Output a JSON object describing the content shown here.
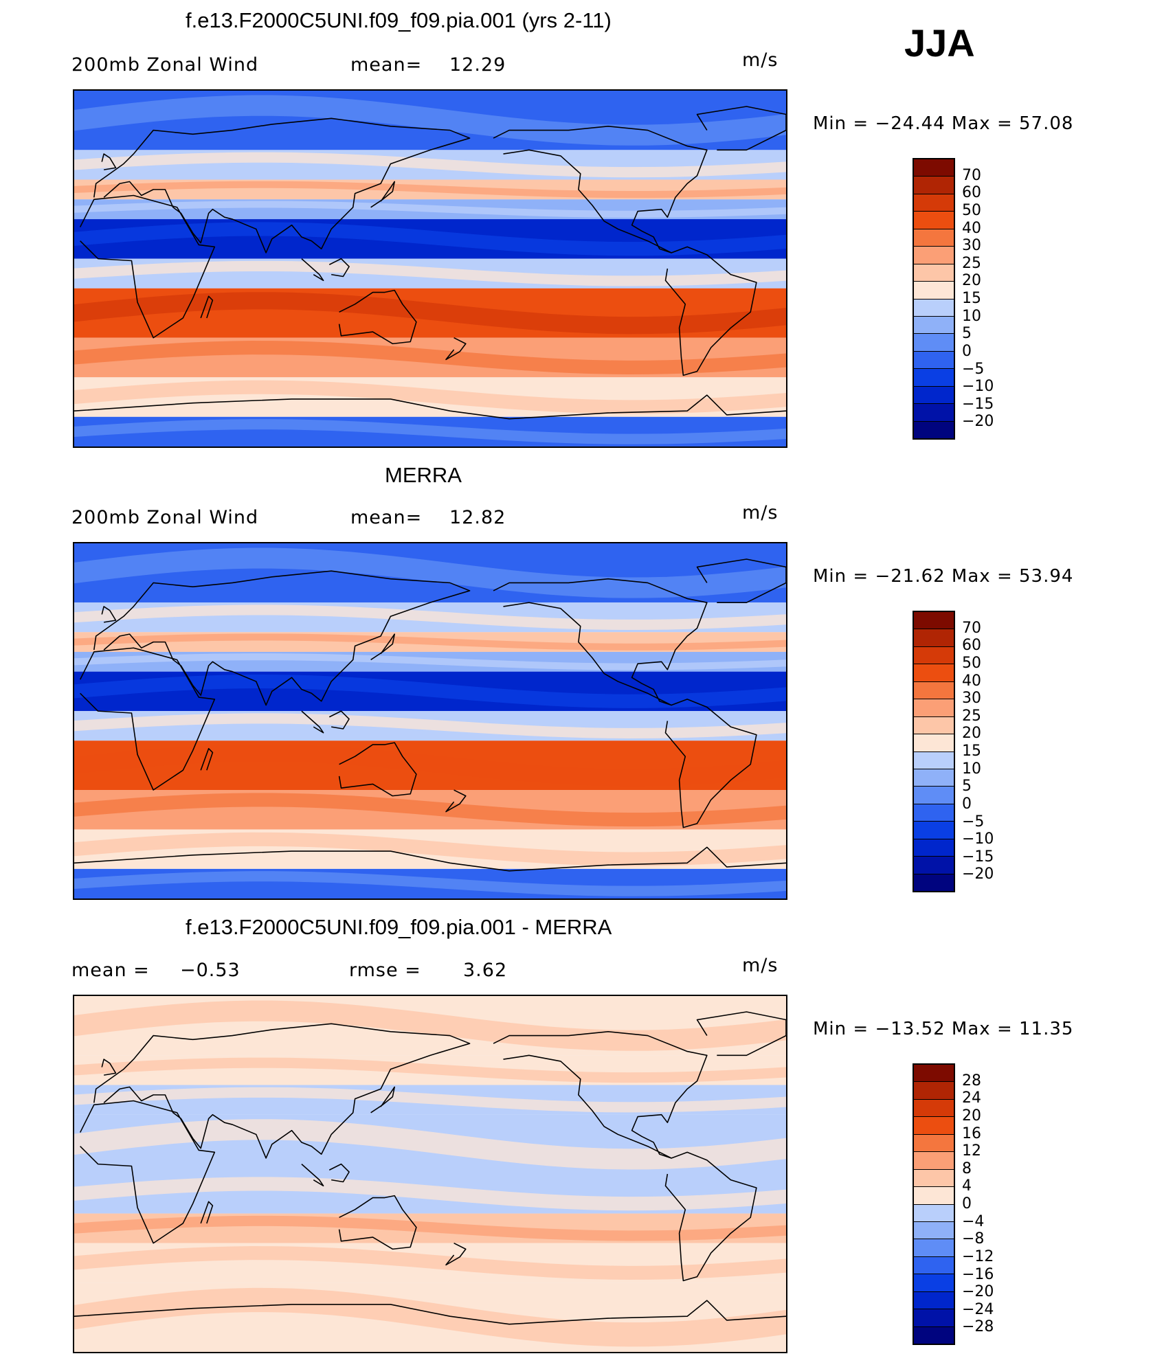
{
  "season": "JJA",
  "colors": {
    "wind": [
      "#00047f",
      "#0012a8",
      "#0026cc",
      "#0a3fe4",
      "#2f63f0",
      "#5f8df6",
      "#8fb1f8",
      "#b9cffb",
      "#dbe8fc",
      "#fde6d6",
      "#fdc6a8",
      "#fb9f76",
      "#f4763e",
      "#ec4e10",
      "#d53a08",
      "#b02504",
      "#7d0b00"
    ],
    "diff": [
      "#00047f",
      "#0012a8",
      "#0026cc",
      "#0a3fe4",
      "#2f63f0",
      "#5f8df6",
      "#8fb1f8",
      "#b9cffb",
      "#dbe8fc",
      "#fde6d6",
      "#fdc6a8",
      "#fb9f76",
      "#f4763e",
      "#ec4e10",
      "#d53a08",
      "#b02504",
      "#7d0b00"
    ]
  },
  "panels": [
    {
      "title": "f.e13.F2000C5UNI.f09_f09.pia.001 (yrs 2-11)",
      "left_label": "200mb  Zonal  Wind",
      "stat_label": "mean=",
      "stat_value": "12.29",
      "units": "m/s",
      "minmax": "Min  =  −24.44  Max  =    57.08",
      "levels": [
        "70",
        "60",
        "50",
        "40",
        "30",
        "25",
        "20",
        "15",
        "10",
        "5",
        "0",
        "−5",
        "−10",
        "−15",
        "−20"
      ],
      "field": {
        "type": "zonal_wind",
        "bands": [
          {
            "lat_from": 90,
            "lat_to": 60,
            "value_m_s": -5
          },
          {
            "lat_from": 60,
            "lat_to": 45,
            "value_m_s": 10
          },
          {
            "lat_from": 45,
            "lat_to": 35,
            "value_m_s": 20
          },
          {
            "lat_from": 35,
            "lat_to": 25,
            "value_m_s": 5
          },
          {
            "lat_from": 25,
            "lat_to": 5,
            "value_m_s": -15
          },
          {
            "lat_from": 5,
            "lat_to": -10,
            "value_m_s": 10
          },
          {
            "lat_from": -10,
            "lat_to": -35,
            "value_m_s": 45
          },
          {
            "lat_from": -35,
            "lat_to": -55,
            "value_m_s": 25
          },
          {
            "lat_from": -55,
            "lat_to": -75,
            "value_m_s": 15
          },
          {
            "lat_from": -75,
            "lat_to": -90,
            "value_m_s": -5
          }
        ]
      }
    },
    {
      "title": "MERRA",
      "left_label": "200mb  Zonal  Wind",
      "stat_label": "mean=",
      "stat_value": "12.82",
      "units": "m/s",
      "minmax": "Min  =  −21.62  Max  =    53.94",
      "levels": [
        "70",
        "60",
        "50",
        "40",
        "30",
        "25",
        "20",
        "15",
        "10",
        "5",
        "0",
        "−5",
        "−10",
        "−15",
        "−20"
      ],
      "field": {
        "type": "zonal_wind",
        "bands": [
          {
            "lat_from": 90,
            "lat_to": 60,
            "value_m_s": -5
          },
          {
            "lat_from": 60,
            "lat_to": 45,
            "value_m_s": 10
          },
          {
            "lat_from": 45,
            "lat_to": 35,
            "value_m_s": 20
          },
          {
            "lat_from": 35,
            "lat_to": 25,
            "value_m_s": 5
          },
          {
            "lat_from": 25,
            "lat_to": 5,
            "value_m_s": -15
          },
          {
            "lat_from": 5,
            "lat_to": -10,
            "value_m_s": 10
          },
          {
            "lat_from": -10,
            "lat_to": -35,
            "value_m_s": 40
          },
          {
            "lat_from": -35,
            "lat_to": -55,
            "value_m_s": 25
          },
          {
            "lat_from": -55,
            "lat_to": -75,
            "value_m_s": 15
          },
          {
            "lat_from": -75,
            "lat_to": -90,
            "value_m_s": -5
          }
        ]
      }
    },
    {
      "title": "f.e13.F2000C5UNI.f09_f09.pia.001 - MERRA",
      "left_label": "mean  =",
      "left_value": "−0.53",
      "stat_label": "rmse  =",
      "stat_value": "3.62",
      "units": "m/s",
      "minmax": "Min  =  −13.52  Max  =    11.35",
      "levels": [
        "28",
        "24",
        "20",
        "16",
        "12",
        "8",
        "4",
        "0",
        "−4",
        "−8",
        "−12",
        "−16",
        "−20",
        "−24",
        "−28"
      ],
      "field": {
        "type": "difference",
        "bands": [
          {
            "lat_from": 90,
            "lat_to": 60,
            "value_m_s": 0
          },
          {
            "lat_from": 60,
            "lat_to": 45,
            "value_m_s": 2
          },
          {
            "lat_from": 45,
            "lat_to": 30,
            "value_m_s": -4
          },
          {
            "lat_from": 30,
            "lat_to": 0,
            "value_m_s": -2
          },
          {
            "lat_from": 0,
            "lat_to": -20,
            "value_m_s": -4
          },
          {
            "lat_from": -20,
            "lat_to": -35,
            "value_m_s": 4
          },
          {
            "lat_from": -35,
            "lat_to": -55,
            "value_m_s": 2
          },
          {
            "lat_from": -55,
            "lat_to": -90,
            "value_m_s": 0
          }
        ]
      }
    }
  ]
}
